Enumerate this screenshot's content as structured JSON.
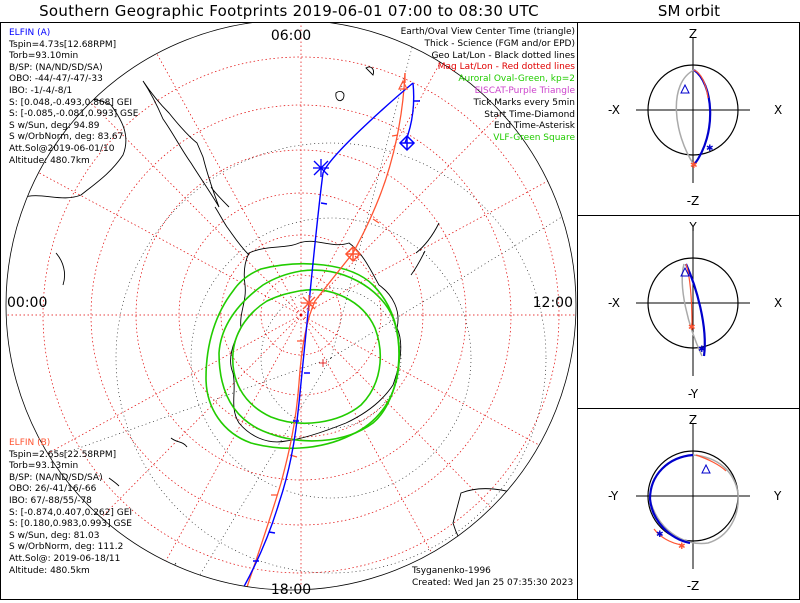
{
  "title": "Southern Geographic Footprints 2019-06-01 07:00 to 08:30 UTC",
  "sm_title": "SM orbit",
  "map": {
    "time_labels": {
      "top": "06:00",
      "left": "00:00",
      "right": "12:00",
      "bottom": "18:00"
    },
    "colors": {
      "grid_geo": "#000000",
      "grid_mag": "#e00000",
      "land": "#000000",
      "oval": "#22cc00",
      "elfin_a": "#0000ff",
      "elfin_b": "#ff5533"
    }
  },
  "legend": {
    "items": [
      {
        "text": "Earth/Oval View Center Time (triangle)",
        "color": "#000000"
      },
      {
        "text": "Thick - Science (FGM and/or EPD)",
        "color": "#000000"
      },
      {
        "text": "Geo Lat/Lon - Black dotted lines",
        "color": "#000000"
      },
      {
        "text": "Mag Lat/Lon - Red dotted lines",
        "color": "#e00000"
      },
      {
        "text": "Auroral Oval-Green, kp=2",
        "color": "#22cc00"
      },
      {
        "text": "EISCAT-Purple Triangle",
        "color": "#cc44cc"
      },
      {
        "text": "Tick Marks every 5min",
        "color": "#000000"
      },
      {
        "text": "Start Time-Diamond",
        "color": "#000000"
      },
      {
        "text": "End Time-Asterisk",
        "color": "#000000"
      },
      {
        "text": "VLF-Green Square",
        "color": "#22cc00"
      }
    ]
  },
  "elfin_a": {
    "name": "ELFIN (A)",
    "lines": [
      "Tspin=4.73s[12.68RPM]",
      "Torb=93.10min",
      "B/SP: (NA/ND/SD/SA)",
      "OBO: -44/-47/-47/-33",
      "IBO: -1/-4/-8/1",
      "S: [0.048,-0.493,0.868] GEI",
      "S: [-0.085,-0.081,0.993] GSE",
      "S w/Sun, deg: 94.89",
      "S w/OrbNorm, deg: 83.67",
      "Att.Sol@2019-06-01/10",
      "Altitude: 480.7km"
    ]
  },
  "elfin_b": {
    "name": "ELFIN (B)",
    "lines": [
      "Tspin=2.65s[22.58RPM]",
      "Torb=93.13min",
      "B/SP: (NA/ND/SD/SA)",
      "OBO: 26/-41/16/-66",
      "IBO: 67/-88/55/-78",
      "S: [-0.874,0.407,0.262] GEI",
      "S: [0.180,0.983,0.993] GSE",
      "S w/Sun, deg: 81.03",
      "S w/OrbNorm, deg: 111.2",
      "Att.Sol@: 2019-06-18/11",
      "Altitude: 480.5km"
    ]
  },
  "credits": {
    "author": "Tsyganenko-1996",
    "created": "Created: Wed Jan 25 07:35:30 2023"
  },
  "sm": {
    "xz": {
      "top": "Z",
      "bottom": "-Z",
      "left": "-X",
      "right": "X"
    },
    "yx": {
      "top": "Y",
      "bottom": "-Y",
      "left": "-X",
      "right": "X"
    },
    "zy": {
      "top": "Z",
      "bottom": "-Z",
      "left": "-Y",
      "right": "Y"
    }
  }
}
